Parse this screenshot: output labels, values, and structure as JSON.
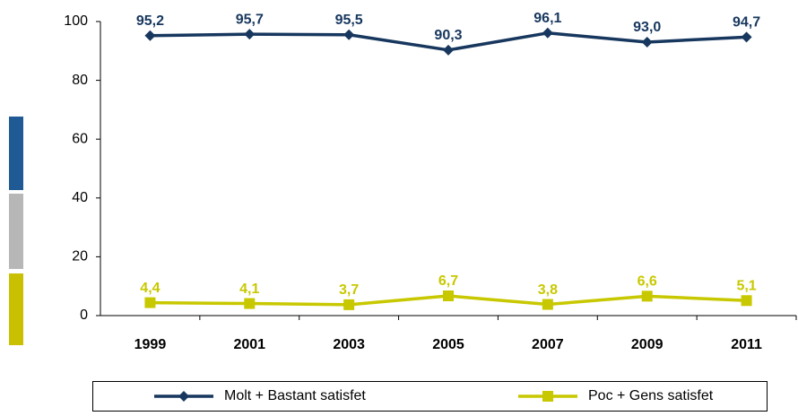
{
  "chart_data": {
    "type": "line",
    "categories": [
      "1999",
      "2001",
      "2003",
      "2005",
      "2007",
      "2009",
      "2011"
    ],
    "series": [
      {
        "name": "Molt + Bastant satisfet",
        "color": "#17375e",
        "marker": "diamond",
        "values": [
          95.2,
          95.7,
          95.5,
          90.3,
          96.1,
          93.0,
          94.7
        ],
        "value_labels": [
          "95,2",
          "95,7",
          "95,5",
          "90,3",
          "96,1",
          "93,0",
          "94,7"
        ]
      },
      {
        "name": "Poc + Gens satisfet",
        "color": "#c8c800",
        "marker": "square",
        "values": [
          4.4,
          4.1,
          3.7,
          6.7,
          3.8,
          6.6,
          5.1
        ],
        "value_labels": [
          "4,4",
          "4,1",
          "3,7",
          "6,7",
          "3,8",
          "6,6",
          "5,1"
        ]
      }
    ],
    "ylim": [
      0,
      100
    ],
    "yticks": [
      0,
      20,
      40,
      60,
      80,
      100
    ],
    "grid": false,
    "legend": "bottom"
  }
}
